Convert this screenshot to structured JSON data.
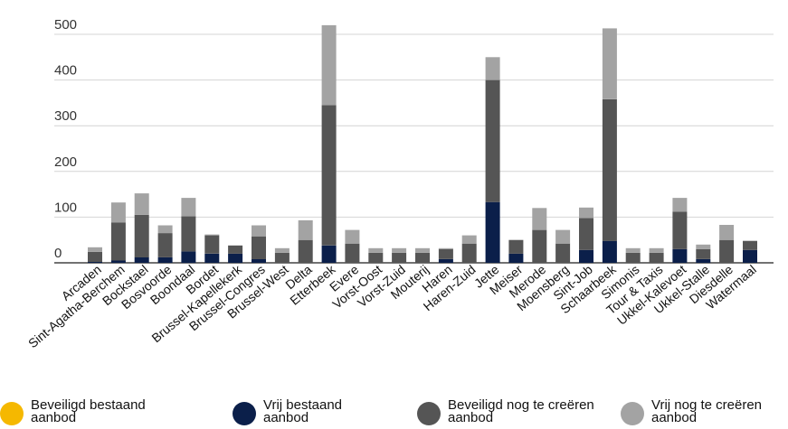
{
  "chart_data": {
    "type": "bar",
    "stacked": true,
    "title": "",
    "xlabel": "",
    "ylabel": "",
    "ylim": [
      0,
      530
    ],
    "yticks": [
      0,
      100,
      200,
      300,
      400,
      500
    ],
    "grid": "horizontal",
    "legend_position": "bottom",
    "categories": [
      "Arcaden",
      "Sint-Agatha-Berchem",
      "Bockstael",
      "Bosvoorde",
      "Boondaal",
      "Bordet",
      "Brussel-Kapellekerk",
      "Brussel-Congres",
      "Brussel-West",
      "Delta",
      "Etterbeek",
      "Evere",
      "Vorst-Oost",
      "Vorst-Zuid",
      "Mouterij",
      "Haren",
      "Haren-Zuid",
      "Jette",
      "Meiser",
      "Merode",
      "Moensberg",
      "Sint-Job",
      "Schaarbeek",
      "Simonis",
      "Tour & Taxis",
      "Ukkel-Kalevoet",
      "Ukkel-Stalle",
      "Diesdelle",
      "Watermaal"
    ],
    "series": [
      {
        "name": "Beveiligd bestaand aanbod",
        "color": "#f5b800",
        "values": [
          0,
          0,
          0,
          0,
          0,
          0,
          0,
          0,
          0,
          0,
          0,
          0,
          0,
          0,
          0,
          0,
          0,
          0,
          0,
          0,
          0,
          0,
          0,
          0,
          0,
          0,
          0,
          0,
          0
        ]
      },
      {
        "name": "Vrij bestaand aanbod",
        "color": "#0b1f4a",
        "values": [
          2,
          5,
          12,
          12,
          25,
          20,
          20,
          8,
          0,
          0,
          38,
          0,
          0,
          0,
          0,
          8,
          0,
          133,
          20,
          0,
          0,
          28,
          48,
          0,
          0,
          30,
          8,
          0,
          28
        ]
      },
      {
        "name": "Beveiligd nog te creëren aanbod",
        "color": "#555555",
        "values": [
          22,
          83,
          93,
          53,
          77,
          40,
          18,
          50,
          22,
          50,
          307,
          42,
          22,
          22,
          22,
          22,
          42,
          267,
          30,
          72,
          42,
          70,
          310,
          22,
          22,
          82,
          22,
          50,
          20
        ]
      },
      {
        "name": "Vrij nog te creëren aanbod",
        "color": "#a3a3a3",
        "values": [
          10,
          44,
          47,
          17,
          40,
          2,
          0,
          24,
          10,
          43,
          175,
          30,
          10,
          10,
          10,
          2,
          18,
          50,
          0,
          48,
          30,
          23,
          155,
          10,
          10,
          30,
          10,
          33,
          0
        ]
      }
    ]
  }
}
